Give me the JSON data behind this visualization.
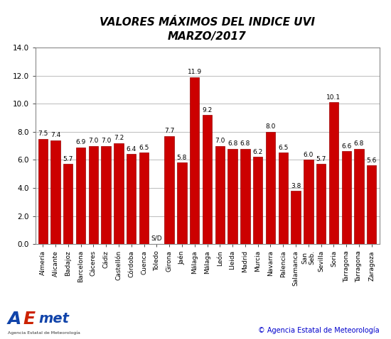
{
  "title": "VALORES MÁXIMOS DEL INDICE UVI\nMARZO/2017",
  "x_labels": [
    "Almería",
    "Alicante",
    "Badajoz",
    "Barcelona",
    "Cáceres",
    "Cádiz",
    "Castellón",
    "Córdoba",
    "Cuenca",
    "Toledo",
    "Girona",
    "Jaén",
    "Málaga",
    "Málaga",
    "León",
    "Lleida",
    "Madrid",
    "Murcia",
    "Navarra",
    "Palencia",
    "Salamanca",
    "San\nSeb.",
    "Sevilla",
    "Soria",
    "Tarragona",
    "Tarragona",
    "Zaragoza"
  ],
  "values": [
    7.5,
    7.4,
    5.7,
    6.9,
    7.0,
    7.0,
    7.2,
    6.4,
    6.5,
    0.0,
    7.7,
    5.8,
    11.9,
    9.2,
    7.0,
    6.8,
    6.8,
    6.2,
    8.0,
    6.5,
    3.8,
    6.0,
    5.7,
    10.1,
    6.6,
    6.8,
    5.6
  ],
  "value_labels": [
    "7.5",
    "7.4",
    "5.7",
    "6.9",
    "7.0",
    "7.0",
    "7.2",
    "6.4",
    "6.5",
    "S/D",
    "7.7",
    "5.8",
    "11.9",
    "9.2",
    "7.0",
    "6.8",
    "6.8",
    "6.2",
    "8.0",
    "6.5",
    "3.8",
    "6.0",
    "5.7",
    "10.1",
    "6.6",
    "6.8",
    "5.6"
  ],
  "bar_color": "#cc0000",
  "ylim": [
    0.0,
    14.0
  ],
  "yticks": [
    0.0,
    2.0,
    4.0,
    6.0,
    8.0,
    10.0,
    12.0,
    14.0
  ],
  "grid_color": "#bbbbbb",
  "bg_color": "#ffffff",
  "title_fontsize": 11,
  "label_fontsize": 6.5,
  "value_fontsize": 6.5,
  "footer_text": "© Agencia Estatal de Meteorología",
  "footer_color": "#0000cc",
  "footer_fontsize": 7
}
